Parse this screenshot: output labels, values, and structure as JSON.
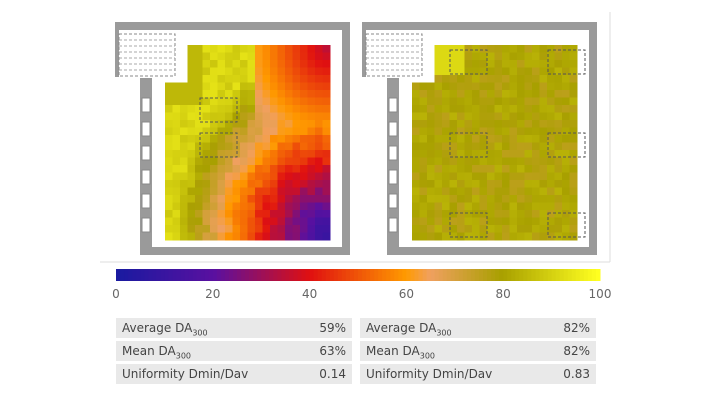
{
  "colorbar": {
    "ticks": [
      0,
      20,
      40,
      60,
      80,
      100
    ]
  },
  "tables": [
    {
      "rows": [
        {
          "label": "Average DA",
          "sub": "300",
          "value": "59%"
        },
        {
          "label": "Mean DA",
          "sub": "300",
          "value": "63%"
        },
        {
          "label": "Uniformity Dmin/Dav",
          "value": "0.14"
        }
      ]
    },
    {
      "rows": [
        {
          "label": "Average DA",
          "sub": "300",
          "value": "82%"
        },
        {
          "label": "Mean DA",
          "sub": "300",
          "value": "82%"
        },
        {
          "label": "Uniformity Dmin/Dav",
          "value": "0.83"
        }
      ]
    }
  ]
}
